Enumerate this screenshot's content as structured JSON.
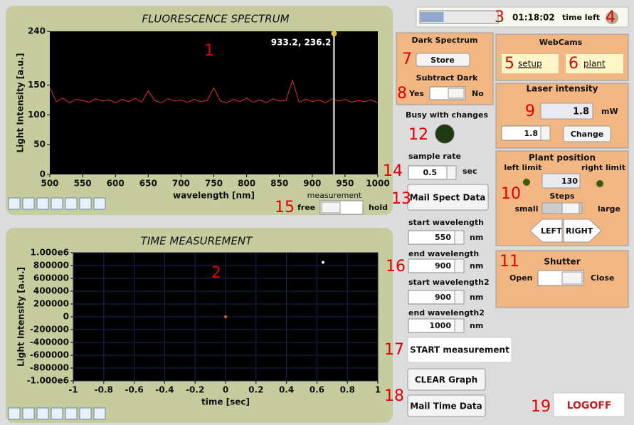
{
  "timer": {
    "time": "01:18:02",
    "time_left": "time left",
    "progress": 0.3
  },
  "spectrum": {
    "type": "line",
    "title": "FLUORESCENCE SPECTRUM",
    "x_label": "wavelength [nm]",
    "y_label": "Light Intensity [a.u.]",
    "x": [
      500,
      510,
      520,
      530,
      540,
      550,
      560,
      570,
      580,
      590,
      600,
      610,
      620,
      630,
      640,
      650,
      660,
      670,
      680,
      690,
      700,
      710,
      720,
      730,
      740,
      750,
      760,
      770,
      780,
      790,
      800,
      810,
      820,
      830,
      840,
      850,
      860,
      870,
      880,
      890,
      900,
      910,
      920,
      930,
      940,
      950,
      960,
      970,
      980,
      990,
      1000
    ],
    "values": [
      145,
      122,
      128,
      120,
      126,
      124,
      121,
      127,
      123,
      125,
      120,
      126,
      122,
      128,
      121,
      140,
      124,
      120,
      127,
      123,
      125,
      121,
      126,
      122,
      124,
      145,
      123,
      120,
      126,
      122,
      128,
      121,
      125,
      120,
      127,
      123,
      124,
      158,
      121,
      126,
      122,
      125,
      120,
      127,
      123,
      126,
      121,
      124,
      122,
      125,
      120
    ],
    "color": "#e03030",
    "xlim": [
      500,
      1000
    ],
    "ylim": [
      0,
      240
    ],
    "xticks": [
      500,
      550,
      600,
      650,
      700,
      750,
      800,
      850,
      900,
      950,
      1000
    ],
    "yticks": [
      0,
      50,
      100,
      150,
      240
    ],
    "cursor": {
      "x": 933.2,
      "y": 236.2,
      "label": "933.2, 236.2"
    },
    "measurement": "measurement",
    "free": "free",
    "hold": "hold"
  },
  "time": {
    "type": "scatter",
    "title": "TIME MEASUREMENT",
    "x_label": "time [sec]",
    "y_label": "Light Intensity [a.u.]",
    "x": [
      0.64,
      0
    ],
    "values": [
      850000,
      0
    ],
    "colors": [
      "#ffffff",
      "#e06030"
    ],
    "xlim": [
      -1,
      1
    ],
    "ylim": [
      -1000000,
      1000000
    ],
    "grid": true,
    "xticks": [
      -1,
      -0.8,
      -0.6,
      -0.4,
      -0.2,
      0,
      0.2,
      0.4,
      0.6,
      0.8,
      1
    ],
    "yticks": [
      {
        "value": 1000000,
        "label": "1.000e6"
      },
      800000,
      600000,
      400000,
      200000,
      0,
      -200000,
      -400000,
      -600000,
      -800000,
      {
        "value": -1000000,
        "label": "-1.000e6"
      }
    ]
  },
  "dark": {
    "title": "Dark Spectrum",
    "store": "Store",
    "subtract": "Subtract Dark",
    "yes": "Yes",
    "no": "No"
  },
  "busy": "Busy with changes",
  "sample_rate": {
    "label": "sample rate",
    "value": 0.5,
    "unit": "sec"
  },
  "mail_spect": "Mail Spect Data",
  "wavelengths": [
    {
      "label": "start wavelength",
      "value": 550,
      "unit": "nm"
    },
    {
      "label": "end wavelength",
      "value": 900,
      "unit": "nm"
    },
    {
      "label": "start wavelength2",
      "value": 900,
      "unit": "nm"
    },
    {
      "label": "end wavelength2",
      "value": 1000,
      "unit": "nm"
    }
  ],
  "start": "START measurement",
  "clear": "CLEAR Graph",
  "mail_time": "Mail Time Data",
  "webcams": {
    "title": "WebCams",
    "setup": "setup",
    "plant": "plant"
  },
  "laser": {
    "title": "Laser intensity",
    "value": 1.8,
    "unit": "mW",
    "set": 1.8,
    "change": "Change"
  },
  "plant": {
    "title": "Plant position",
    "left_limit": "left limit",
    "right_limit": "right limit",
    "position": 130,
    "steps": "Steps",
    "small": "small",
    "large": "large",
    "left": "LEFT",
    "right": "RIGHT"
  },
  "shutter": {
    "title": "Shutter",
    "open": "Open",
    "close": "Close"
  },
  "logoff": "LOGOFF",
  "markers": [
    "1",
    "2",
    "3",
    "4",
    "5",
    "6",
    "7",
    "8",
    "9",
    "10",
    "11",
    "12",
    "13",
    "14",
    "15",
    "16",
    "17",
    "18",
    "19"
  ]
}
